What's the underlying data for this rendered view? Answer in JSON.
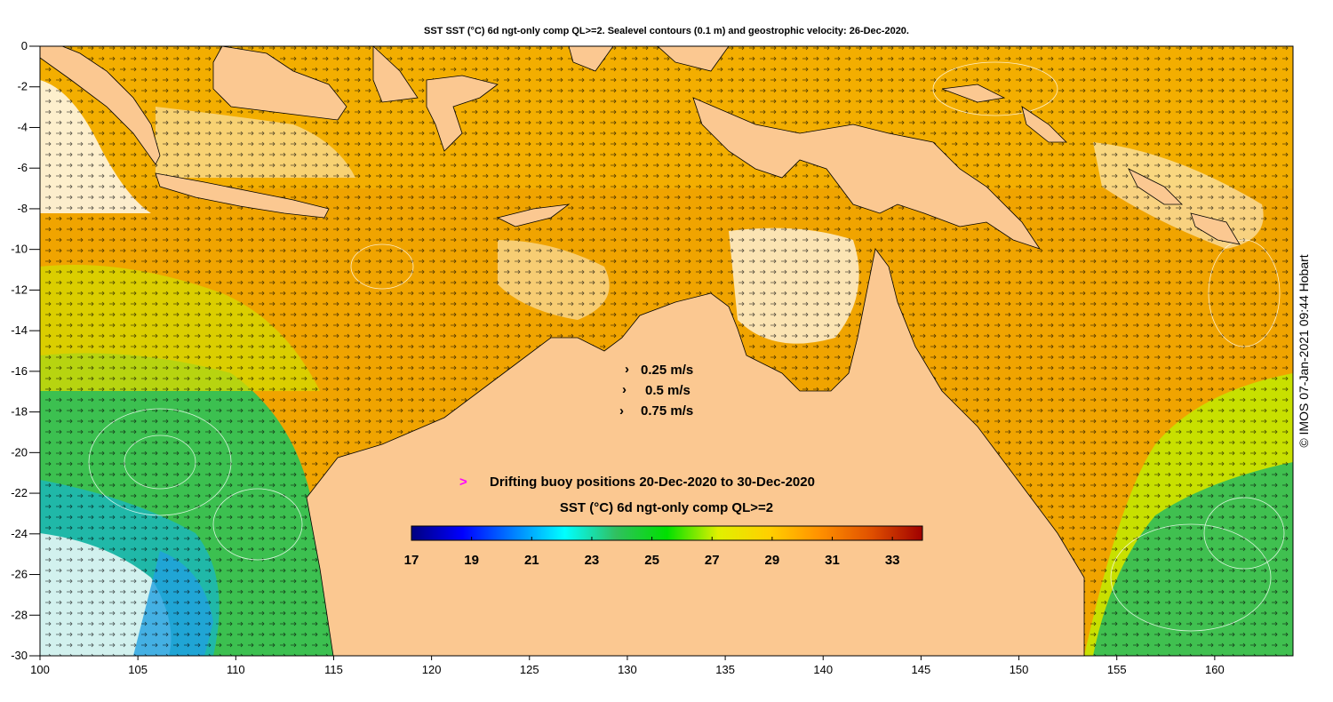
{
  "map": {
    "title": "SST SST (°C) 6d ngt-only comp QL>=2. Sealevel contours (0.1 m) and geostrophic velocity: 26-Dec-2020.",
    "credit": "© IMOS 07-Jan-2021 09:44 Hobart",
    "x_axis": {
      "unit": "longitude",
      "range": [
        100,
        164
      ],
      "ticks": [
        100,
        105,
        110,
        115,
        120,
        125,
        130,
        135,
        140,
        145,
        150,
        155,
        160
      ]
    },
    "y_axis": {
      "unit": "latitude",
      "range": [
        -30,
        0
      ],
      "ticks": [
        0,
        -2,
        -4,
        -6,
        -8,
        -10,
        -12,
        -14,
        -16,
        -18,
        -20,
        -22,
        -24,
        -26,
        -28,
        -30
      ]
    },
    "velocity_legend": [
      "0.25 m/s",
      "0.5 m/s",
      "0.75 m/s"
    ],
    "buoy_legend": {
      "marker": ">",
      "label": "Drifting buoy positions 20-Dec-2020 to 30-Dec-2020",
      "color": "#ff00ff"
    },
    "colorbar": {
      "title": "SST (°C) 6d ngt-only comp QL>=2",
      "min": 17,
      "max": 34,
      "tick_labels": [
        "17",
        "19",
        "21",
        "23",
        "25",
        "27",
        "29",
        "31",
        "33"
      ],
      "colors": [
        "#00007f",
        "#0000ff",
        "#0080ff",
        "#00ffff",
        "#30c060",
        "#00e000",
        "#e0f000",
        "#ffd000",
        "#ff9000",
        "#e05000",
        "#a00000"
      ]
    },
    "land_color": "#fbc891",
    "contour_color": "#ffffff"
  }
}
